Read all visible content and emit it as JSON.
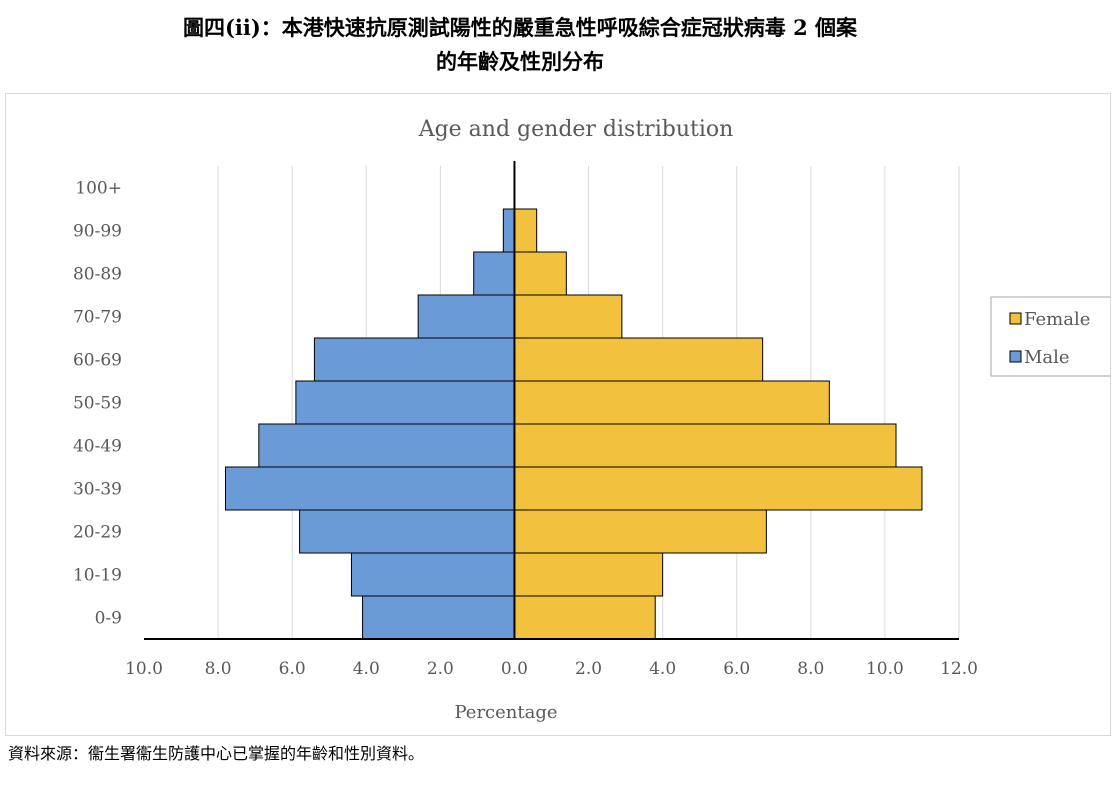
{
  "figure": {
    "title_line1": "圖四(ii)：本港快速抗原測試陽性的嚴重急性呼吸綜合症冠狀病毒 2 個案",
    "title_line2": "的年齡及性別分布",
    "source": "資料來源：衞生署衞生防護中心已掌握的年齡和性別資料。"
  },
  "chart_data": {
    "type": "bar",
    "orientation": "horizontal-population-pyramid",
    "title": "Age and gender distribution",
    "xlabel": "Percentage",
    "ylabel": "",
    "categories": [
      "0-9",
      "10-19",
      "20-29",
      "30-39",
      "40-49",
      "50-59",
      "60-69",
      "70-79",
      "80-89",
      "90-99",
      "100+"
    ],
    "series": [
      {
        "name": "Female",
        "color": "#f2c13e",
        "side": "right",
        "values": [
          3.8,
          4.0,
          6.8,
          11.0,
          10.3,
          8.5,
          6.7,
          2.9,
          1.4,
          0.6,
          0.0
        ]
      },
      {
        "name": "Male",
        "color": "#6b9bd7",
        "side": "left",
        "values": [
          4.1,
          4.4,
          5.8,
          7.8,
          6.9,
          5.9,
          5.4,
          2.6,
          1.1,
          0.3,
          0.0
        ]
      }
    ],
    "xlim": [
      -10,
      12
    ],
    "xticks": [
      "10.0",
      "8.0",
      "6.0",
      "4.0",
      "2.0",
      "0.0",
      "2.0",
      "4.0",
      "6.0",
      "8.0",
      "10.0",
      "12.0"
    ],
    "grid": "vertical",
    "legend_position": "right"
  }
}
